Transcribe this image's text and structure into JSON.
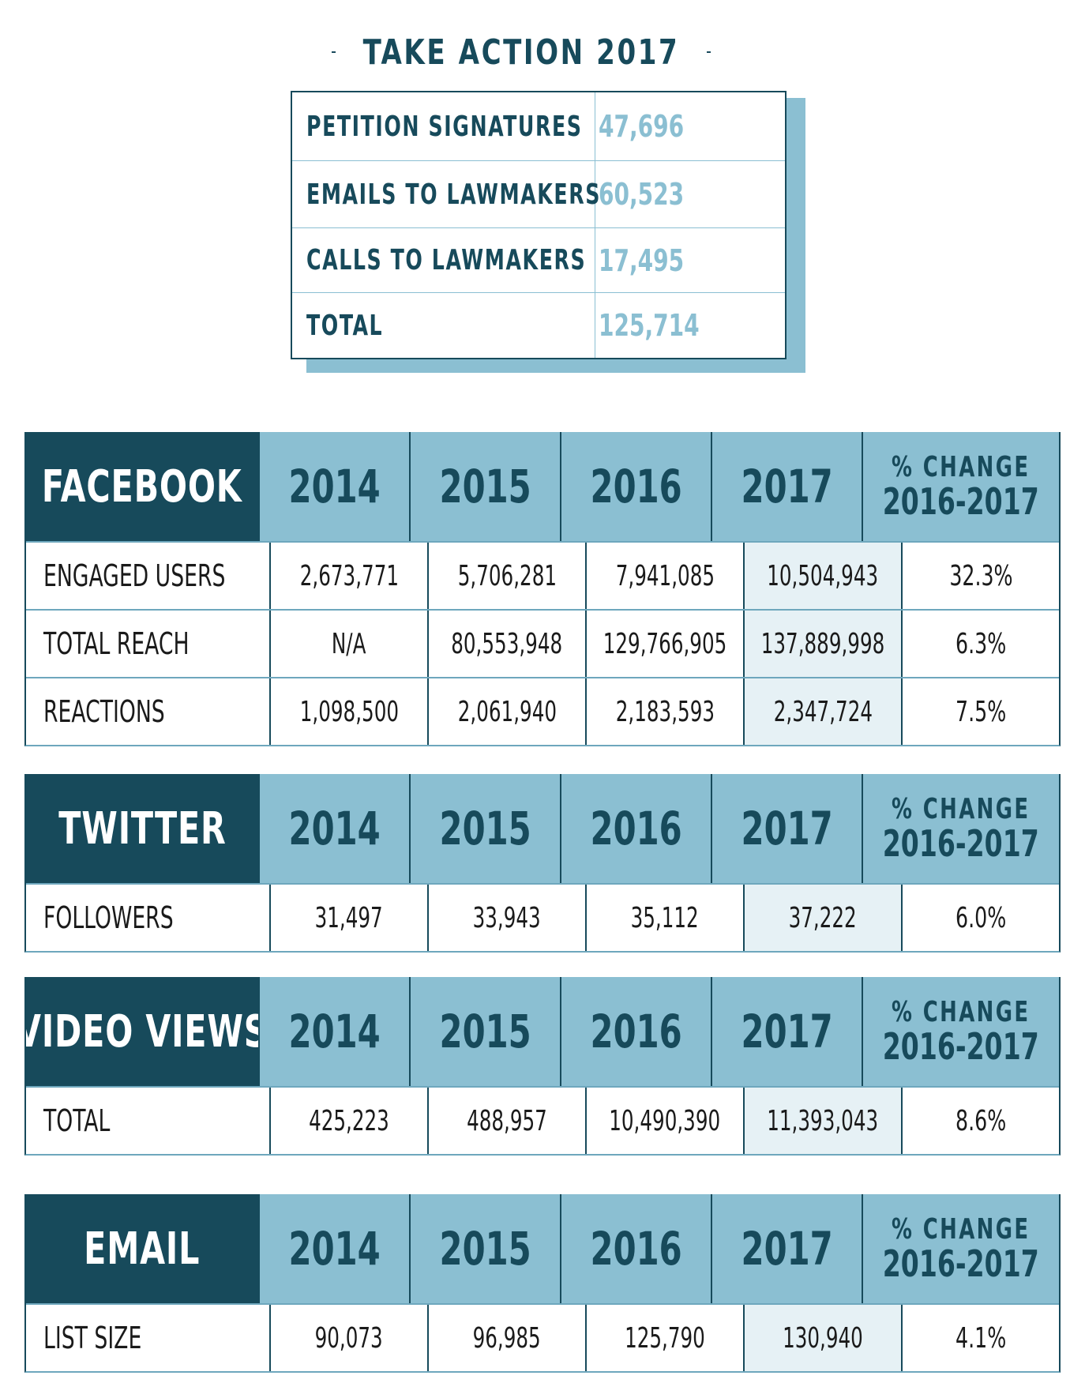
{
  "title": "TAKE ACTION 2017",
  "take_action": [
    {
      "label": "PETITION SIGNATURES",
      "value": "47,696"
    },
    {
      "label": "EMAILS TO LAWMAKERS",
      "value": "60,523"
    },
    {
      "label": "CALLS TO LAWMAKERS",
      "value": "17,495"
    },
    {
      "label": "TOTAL",
      "value": "125,714"
    }
  ],
  "change_label_line1": "% CHANGE",
  "change_label_line2": "2016-2017",
  "tables": [
    {
      "title": "FACEBOOK",
      "years": [
        "2014",
        "2015",
        "2016",
        "2017"
      ],
      "rows": [
        {
          "label": "ENGAGED USERS",
          "values": [
            "2,673,771",
            "5,706,281",
            "7,941,085",
            "10,504,943"
          ],
          "change": "32.3%"
        },
        {
          "label": "TOTAL REACH",
          "values": [
            "N/A",
            "80,553,948",
            "129,766,905",
            "137,889,998"
          ],
          "change": "6.3%"
        },
        {
          "label": "REACTIONS",
          "values": [
            "1,098,500",
            "2,061,940",
            "2,183,593",
            "2,347,724"
          ],
          "change": "7.5%"
        }
      ]
    },
    {
      "title": "TWITTER",
      "years": [
        "2014",
        "2015",
        "2016",
        "2017"
      ],
      "rows": [
        {
          "label": "FOLLOWERS",
          "values": [
            "31,497",
            "33,943",
            "35,112",
            "37,222"
          ],
          "change": "6.0%"
        }
      ]
    },
    {
      "title": "VIDEO VIEWS",
      "years": [
        "2014",
        "2015",
        "2016",
        "2017"
      ],
      "rows": [
        {
          "label": "TOTAL",
          "values": [
            "425,223",
            "488,957",
            "10,490,390",
            "11,393,043"
          ],
          "change": "8.6%"
        }
      ]
    },
    {
      "title": "EMAIL",
      "years": [
        "2014",
        "2015",
        "2016",
        "2017"
      ],
      "rows": [
        {
          "label": "LIST SIZE",
          "values": [
            "90,073",
            "96,985",
            "125,790",
            "130,940"
          ],
          "change": "4.1%"
        }
      ]
    }
  ],
  "colors": {
    "dark_teal": "#174a5b",
    "light_blue": "#8bbfd2",
    "highlight": "#e6f1f5"
  }
}
